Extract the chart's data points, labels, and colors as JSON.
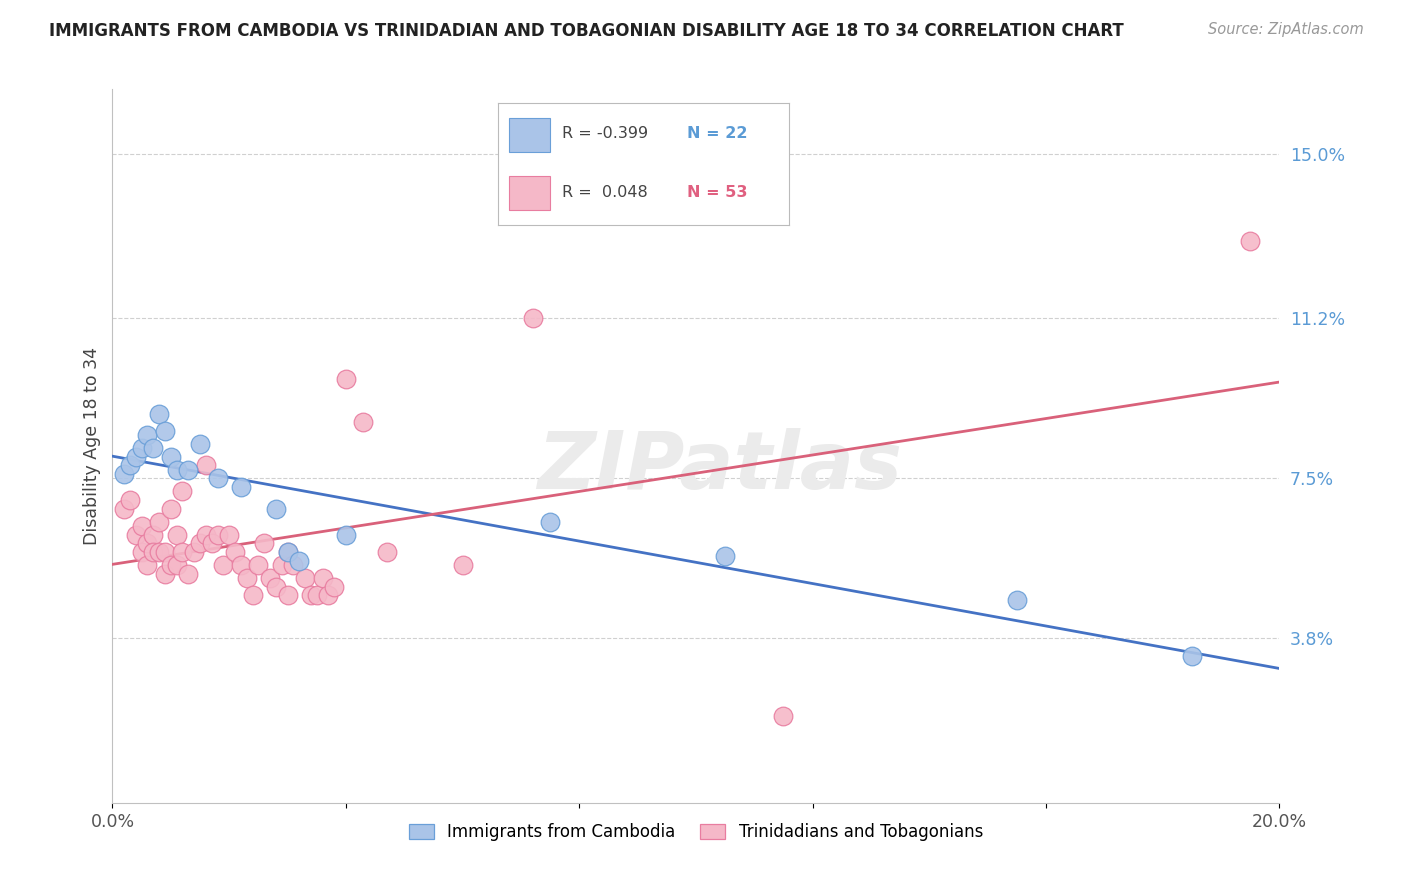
{
  "title": "IMMIGRANTS FROM CAMBODIA VS TRINIDADIAN AND TOBAGONIAN DISABILITY AGE 18 TO 34 CORRELATION CHART",
  "source": "Source: ZipAtlas.com",
  "ylabel": "Disability Age 18 to 34",
  "xlim": [
    0.0,
    0.2
  ],
  "ylim": [
    0.0,
    0.165
  ],
  "yticks": [
    0.038,
    0.075,
    0.112,
    0.15
  ],
  "ytick_labels": [
    "3.8%",
    "7.5%",
    "11.2%",
    "15.0%"
  ],
  "xticks": [
    0.0,
    0.04,
    0.08,
    0.12,
    0.16,
    0.2
  ],
  "xtick_labels": [
    "0.0%",
    "",
    "",
    "",
    "",
    "20.0%"
  ],
  "watermark": "ZIPatlas",
  "blue_color": "#aac4e8",
  "pink_color": "#f5b8c8",
  "blue_edge_color": "#6a9fd8",
  "pink_edge_color": "#e87da0",
  "blue_line_color": "#4472c4",
  "pink_line_color": "#d9617a",
  "legend_entries": [
    {
      "r": "R = -0.399",
      "n": "N = 22",
      "color": "#aac4e8",
      "edge": "#6a9fd8"
    },
    {
      "r": "R =  0.048",
      "n": "N = 53",
      "color": "#f5b8c8",
      "edge": "#e87da0"
    }
  ],
  "bottom_legend": [
    "Immigrants from Cambodia",
    "Trinidadians and Tobagonians"
  ],
  "cambodia_x": [
    0.002,
    0.003,
    0.004,
    0.005,
    0.006,
    0.007,
    0.008,
    0.009,
    0.01,
    0.011,
    0.013,
    0.015,
    0.018,
    0.022,
    0.028,
    0.03,
    0.032,
    0.04,
    0.075,
    0.105,
    0.155,
    0.185
  ],
  "cambodia_y": [
    0.076,
    0.078,
    0.08,
    0.082,
    0.085,
    0.082,
    0.09,
    0.086,
    0.08,
    0.077,
    0.077,
    0.083,
    0.075,
    0.073,
    0.068,
    0.058,
    0.056,
    0.062,
    0.065,
    0.057,
    0.047,
    0.034
  ],
  "trinidad_x": [
    0.002,
    0.003,
    0.004,
    0.005,
    0.005,
    0.006,
    0.006,
    0.007,
    0.007,
    0.008,
    0.008,
    0.009,
    0.009,
    0.01,
    0.01,
    0.011,
    0.011,
    0.012,
    0.012,
    0.013,
    0.014,
    0.015,
    0.016,
    0.016,
    0.017,
    0.018,
    0.019,
    0.02,
    0.021,
    0.022,
    0.023,
    0.024,
    0.025,
    0.026,
    0.027,
    0.028,
    0.029,
    0.03,
    0.03,
    0.031,
    0.033,
    0.034,
    0.035,
    0.036,
    0.037,
    0.038,
    0.04,
    0.043,
    0.047,
    0.06,
    0.072,
    0.115,
    0.195
  ],
  "trinidad_y": [
    0.068,
    0.07,
    0.062,
    0.064,
    0.058,
    0.06,
    0.055,
    0.062,
    0.058,
    0.058,
    0.065,
    0.053,
    0.058,
    0.055,
    0.068,
    0.055,
    0.062,
    0.058,
    0.072,
    0.053,
    0.058,
    0.06,
    0.062,
    0.078,
    0.06,
    0.062,
    0.055,
    0.062,
    0.058,
    0.055,
    0.052,
    0.048,
    0.055,
    0.06,
    0.052,
    0.05,
    0.055,
    0.048,
    0.058,
    0.055,
    0.052,
    0.048,
    0.048,
    0.052,
    0.048,
    0.05,
    0.098,
    0.088,
    0.058,
    0.055,
    0.112,
    0.02,
    0.13
  ]
}
